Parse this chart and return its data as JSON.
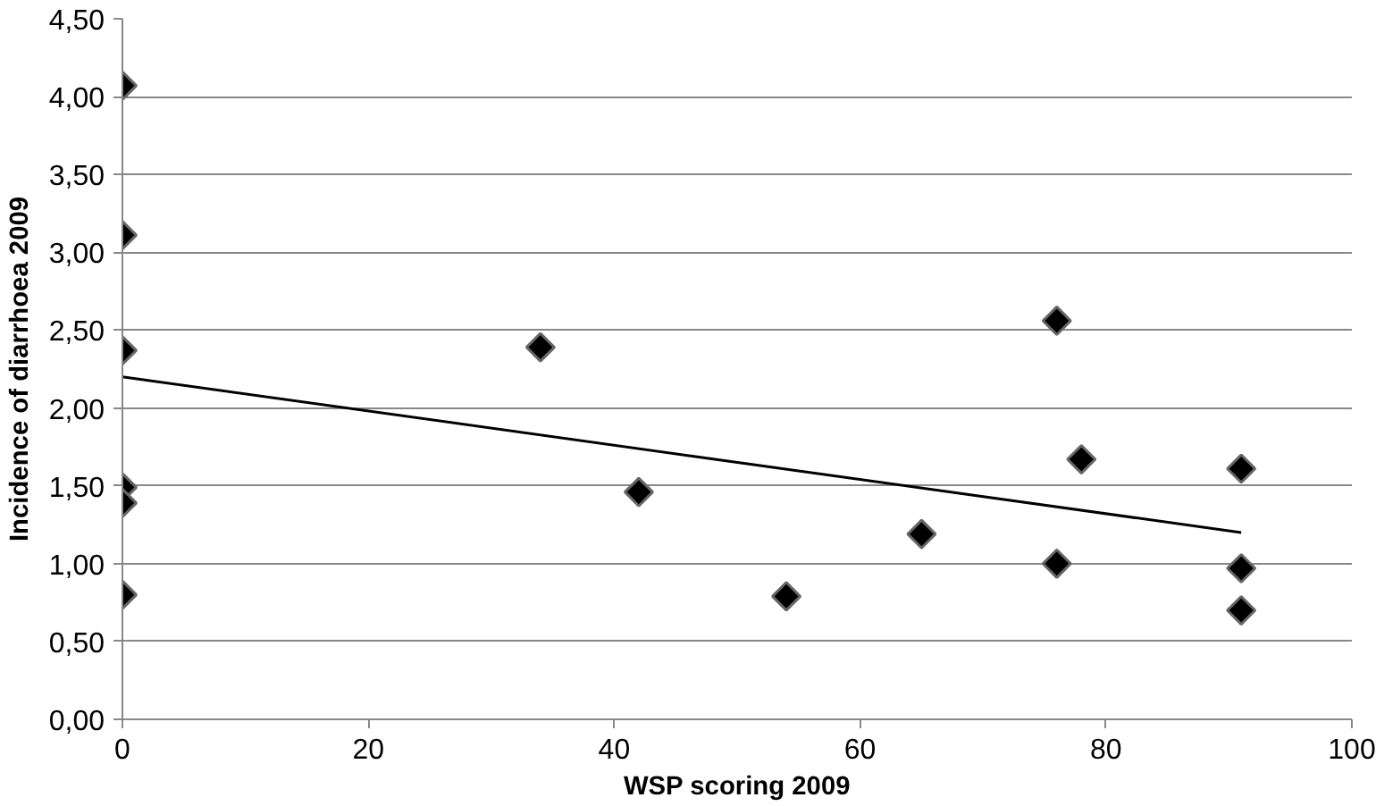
{
  "chart_data": {
    "type": "scatter",
    "xlabel": "WSP scoring 2009",
    "ylabel": "Incidence of diarrhoea 2009",
    "xlim": [
      0,
      100
    ],
    "xticks": [
      0,
      20,
      40,
      60,
      80,
      100
    ],
    "ylim": [
      0,
      4.5
    ],
    "yticks": [
      {
        "value": 0,
        "label": "0,00"
      },
      {
        "value": 0.5,
        "label": "0,50"
      },
      {
        "value": 1,
        "label": "1,00"
      },
      {
        "value": 1.5,
        "label": "1,50"
      },
      {
        "value": 2,
        "label": "2,00"
      },
      {
        "value": 2.5,
        "label": "2,50"
      },
      {
        "value": 3,
        "label": "3,00"
      },
      {
        "value": 3.5,
        "label": "3,50"
      },
      {
        "value": 4,
        "label": "4,00"
      },
      {
        "value": 4.5,
        "label": "4,50"
      }
    ],
    "grid": "y",
    "series": [
      {
        "color": "#000000",
        "marker": "diamond",
        "x": [
          0,
          0,
          0,
          0,
          0,
          0,
          34,
          42,
          54,
          65,
          76,
          78,
          76,
          91,
          91,
          91
        ],
        "values": [
          4.07,
          3.11,
          2.37,
          1.49,
          1.39,
          0.8,
          2.39,
          1.46,
          0.79,
          1.19,
          2.56,
          1.67,
          1.0,
          1.61,
          0.97,
          0.7
        ]
      },
      {
        "type": "line",
        "marker": "none",
        "color": "#000000",
        "x": [
          0,
          91
        ],
        "values": [
          2.2,
          1.2
        ]
      }
    ]
  }
}
